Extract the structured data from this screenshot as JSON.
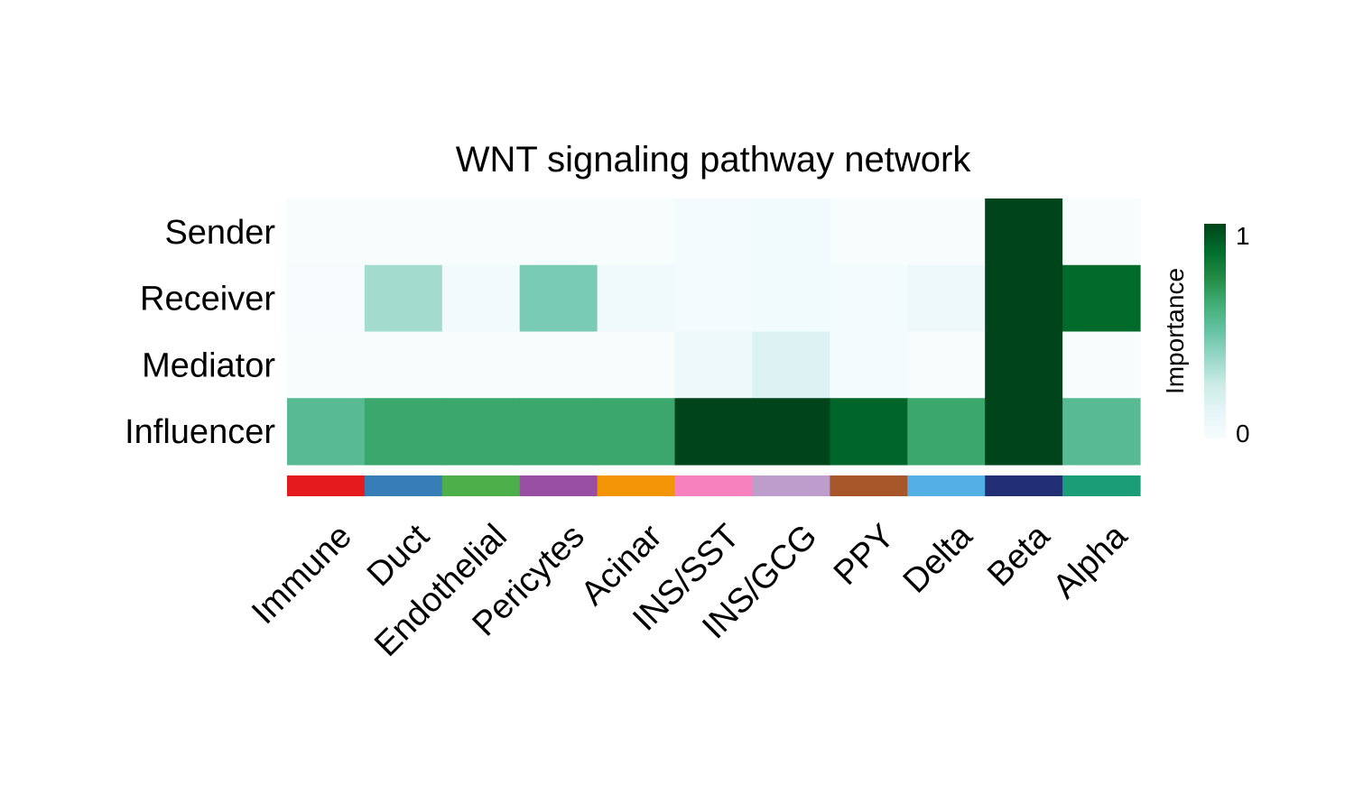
{
  "chart_data": {
    "type": "heatmap",
    "title": "WNT signaling pathway network",
    "rows": [
      "Sender",
      "Receiver",
      "Mediator",
      "Influencer"
    ],
    "columns": [
      "Immune",
      "Duct",
      "Endothelial",
      "Pericytes",
      "Acinar",
      "INS/SST",
      "INS/GCG",
      "PPY",
      "Delta",
      "Beta",
      "Alpha"
    ],
    "values": [
      [
        0.0,
        0.0,
        0.0,
        0.0,
        0.0,
        0.02,
        0.04,
        0.0,
        0.0,
        1.0,
        0.0
      ],
      [
        0.01,
        0.35,
        0.03,
        0.45,
        0.05,
        0.02,
        0.04,
        0.02,
        0.07,
        1.0,
        0.88
      ],
      [
        0.0,
        0.0,
        0.0,
        0.0,
        0.0,
        0.07,
        0.17,
        0.02,
        0.0,
        1.0,
        0.0
      ],
      [
        0.55,
        0.65,
        0.65,
        0.65,
        0.65,
        1.0,
        1.0,
        0.9,
        0.65,
        1.0,
        0.55
      ]
    ],
    "column_colors": [
      "#E41A1C",
      "#377EB8",
      "#4DAF4A",
      "#984EA3",
      "#F29403",
      "#F781BF",
      "#BC9DCC",
      "#A65628",
      "#54B0E4",
      "#222F75",
      "#1B9E77"
    ],
    "colorbar": {
      "title": "Importance",
      "min": 0,
      "max": 1,
      "tick_labels": [
        "1",
        "0"
      ],
      "colors": [
        "#F7FCFD",
        "#E5F5F9",
        "#CCECE6",
        "#99D8C9",
        "#66C2A4",
        "#41AE76",
        "#238B45",
        "#006D2C",
        "#00441B"
      ]
    }
  }
}
